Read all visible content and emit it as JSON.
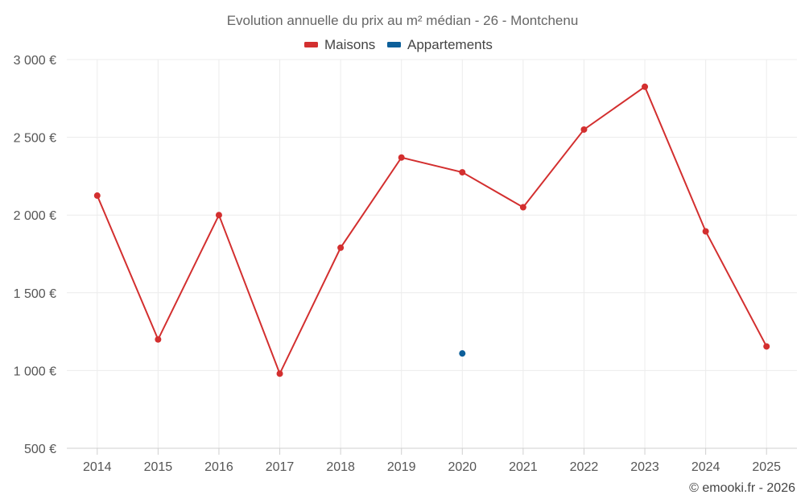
{
  "chart_data": {
    "type": "line",
    "title": "Evolution annuelle du prix au m² médian - 26 - Montchenu",
    "categories": [
      "2014",
      "2015",
      "2016",
      "2017",
      "2018",
      "2019",
      "2020",
      "2021",
      "2022",
      "2023",
      "2024",
      "2025"
    ],
    "ylim": [
      500,
      3000
    ],
    "yticks": [
      500,
      1000,
      1500,
      2000,
      2500,
      3000
    ],
    "ytick_labels": [
      "500 €",
      "1 000 €",
      "1 500 €",
      "2 000 €",
      "2 500 €",
      "3 000 €"
    ],
    "grid": true,
    "legend_position": "top-center",
    "series": [
      {
        "name": "Maisons",
        "color": "#d32f2f",
        "values": [
          2125,
          1200,
          2000,
          980,
          1790,
          2370,
          2275,
          2050,
          2550,
          2825,
          1895,
          1155
        ]
      },
      {
        "name": "Appartements",
        "color": "#0d5f9a",
        "values": [
          null,
          null,
          null,
          null,
          null,
          null,
          1110,
          null,
          null,
          null,
          null,
          null
        ]
      }
    ]
  },
  "credit": "© emooki.fr - 2026"
}
